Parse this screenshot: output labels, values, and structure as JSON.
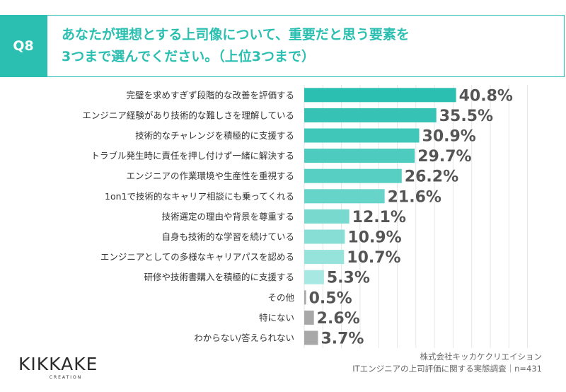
{
  "question": {
    "badge": "Q8",
    "line1": "あなたが理想とする上司像について、重要だと思う要素を",
    "line2": "3つまで選んでください。（上位3つまで）"
  },
  "colors": {
    "accent": "#2bbfb1",
    "gray": "#a8a8a8"
  },
  "chart_data": {
    "type": "bar",
    "orientation": "horizontal",
    "categories": [
      "完璧を求めすぎず段階的な改善を評価する",
      "エンジニア経験があり技術的な難しさを理解している",
      "技術的なチャレンジを積極的に支援する",
      "トラブル発生時に責任を押し付けず一緒に解決する",
      "エンジニアの作業環境や生産性を重視する",
      "1on1で技術的なキャリア相談にも乗ってくれる",
      "技術選定の理由や背景を尊重する",
      "自身も技術的な学習を続けている",
      "エンジニアとしての多様なキャリアパスを認める",
      "研修や技術書購入を積極的に支援する",
      "その他",
      "特にない",
      "わからない/答えられない"
    ],
    "values": [
      40.8,
      35.5,
      30.9,
      29.7,
      26.2,
      21.6,
      12.1,
      10.9,
      10.7,
      5.3,
      0.5,
      2.6,
      3.7
    ],
    "value_labels": [
      "40.8%",
      "35.5%",
      "30.9%",
      "29.7%",
      "26.2%",
      "21.6%",
      "12.1%",
      "10.9%",
      "10.7%",
      "5.3%",
      "0.5%",
      "2.6%",
      "3.7%"
    ],
    "bar_colors": [
      "#2bbfb1",
      "#36c3b5",
      "#41c7ba",
      "#4ccbbe",
      "#57cfc3",
      "#66d4c9",
      "#78d9cf",
      "#87ded5",
      "#96e3db",
      "#a8e8e2",
      "#a8a8a8",
      "#a8a8a8",
      "#a8a8a8"
    ],
    "xlim": [
      0,
      45
    ],
    "grid": true
  },
  "logo": {
    "text": "KIKKAKE",
    "sub": "CREATION"
  },
  "source": {
    "line1": "株式会社キッカケクリエイション",
    "line2": "ITエンジニアの上司評価に関する実態調査｜n=431"
  }
}
